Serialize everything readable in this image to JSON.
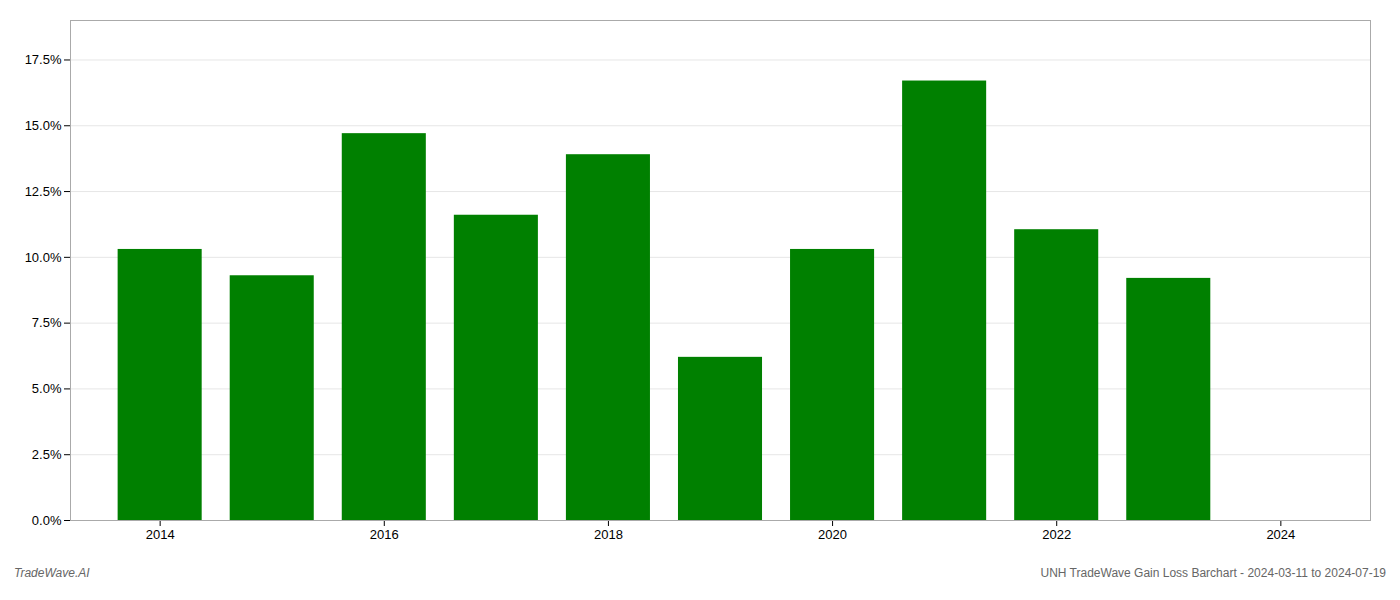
{
  "chart_data": {
    "type": "bar",
    "x": [
      2014,
      2015,
      2016,
      2017,
      2018,
      2019,
      2020,
      2021,
      2022,
      2023
    ],
    "values": [
      0.103,
      0.093,
      0.147,
      0.116,
      0.139,
      0.062,
      0.103,
      0.167,
      0.1105,
      0.092
    ],
    "color": "#008000",
    "xlim": [
      2013.2,
      2024.8
    ],
    "xticks": [
      2014,
      2016,
      2018,
      2020,
      2022,
      2024
    ],
    "ylim": [
      0.0,
      0.19
    ],
    "yticks": [
      {
        "value": 0.0,
        "label": "0.0%"
      },
      {
        "value": 0.025,
        "label": "2.5%"
      },
      {
        "value": 0.05,
        "label": "5.0%"
      },
      {
        "value": 0.075,
        "label": "7.5%"
      },
      {
        "value": 0.1,
        "label": "10.0%"
      },
      {
        "value": 0.125,
        "label": "12.5%"
      },
      {
        "value": 0.15,
        "label": "15.0%"
      },
      {
        "value": 0.175,
        "label": "17.5%"
      }
    ],
    "grid": true,
    "annotations": [
      "TradeWave.AI",
      "UNH TradeWave Gain Loss Barchart - 2024-03-11 to 2024-07-19"
    ]
  }
}
